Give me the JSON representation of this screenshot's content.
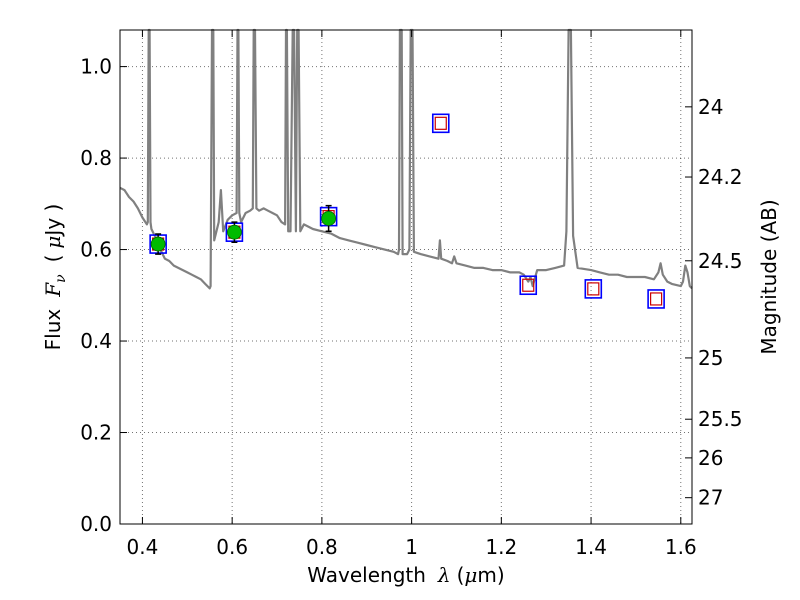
{
  "chart_data": {
    "type": "scatter",
    "title": "",
    "xlabel": {
      "prefix": "Wavelength",
      "symbol": "λ",
      "unit_open": "(",
      "unit_mu": "μ",
      "unit_rest": "m)"
    },
    "ylabel": {
      "prefix": "Flux",
      "symbol": "F",
      "symbol_sub": "ν",
      "unit_open": "(",
      "unit_mu": "μ",
      "unit_rest": "Jy )"
    },
    "y2label": "Magnitude (AB)",
    "xlim": [
      0.35,
      1.625
    ],
    "ylim": [
      0.0,
      1.08
    ],
    "grid": true,
    "x_ticks": [
      {
        "value": 0.4,
        "label": "0.4"
      },
      {
        "value": 0.6,
        "label": "0.6"
      },
      {
        "value": 0.8,
        "label": "0.8"
      },
      {
        "value": 1.0,
        "label": "1"
      },
      {
        "value": 1.2,
        "label": "1.2"
      },
      {
        "value": 1.4,
        "label": "1.4"
      },
      {
        "value": 1.6,
        "label": "1.6"
      }
    ],
    "y_ticks": [
      {
        "value": 0.0,
        "label": "0.0"
      },
      {
        "value": 0.2,
        "label": "0.2"
      },
      {
        "value": 0.4,
        "label": "0.4"
      },
      {
        "value": 0.6,
        "label": "0.6"
      },
      {
        "value": 0.8,
        "label": "0.8"
      },
      {
        "value": 1.0,
        "label": "1.0"
      }
    ],
    "y2_ticks": [
      {
        "mag": 24.0,
        "label": "24"
      },
      {
        "mag": 24.2,
        "label": "24.2"
      },
      {
        "mag": 24.5,
        "label": "24.5"
      },
      {
        "mag": 25.0,
        "label": "25"
      },
      {
        "mag": 25.5,
        "label": "25.5"
      },
      {
        "mag": 26.0,
        "label": "26"
      },
      {
        "mag": 27.0,
        "label": "27"
      }
    ],
    "series": [
      {
        "kind": "spectrum",
        "color": "#808080",
        "points": [
          [
            0.35,
            0.735
          ],
          [
            0.36,
            0.73
          ],
          [
            0.37,
            0.715
          ],
          [
            0.38,
            0.705
          ],
          [
            0.39,
            0.69
          ],
          [
            0.4,
            0.67
          ],
          [
            0.41,
            0.655
          ],
          [
            0.412,
            0.66
          ],
          [
            0.414,
            1.08
          ],
          [
            0.416,
            1.08
          ],
          [
            0.418,
            0.66
          ],
          [
            0.42,
            0.645
          ],
          [
            0.43,
            0.625
          ],
          [
            0.44,
            0.6
          ],
          [
            0.45,
            0.58
          ],
          [
            0.46,
            0.575
          ],
          [
            0.47,
            0.565
          ],
          [
            0.48,
            0.56
          ],
          [
            0.49,
            0.555
          ],
          [
            0.5,
            0.55
          ],
          [
            0.51,
            0.545
          ],
          [
            0.52,
            0.54
          ],
          [
            0.53,
            0.535
          ],
          [
            0.54,
            0.525
          ],
          [
            0.55,
            0.515
          ],
          [
            0.552,
            0.52
          ],
          [
            0.555,
            1.08
          ],
          [
            0.558,
            1.08
          ],
          [
            0.56,
            0.62
          ],
          [
            0.57,
            0.66
          ],
          [
            0.575,
            0.73
          ],
          [
            0.58,
            0.64
          ],
          [
            0.59,
            0.665
          ],
          [
            0.6,
            0.675
          ],
          [
            0.61,
            0.68
          ],
          [
            0.612,
            1.08
          ],
          [
            0.614,
            1.08
          ],
          [
            0.616,
            0.68
          ],
          [
            0.62,
            0.66
          ],
          [
            0.63,
            0.68
          ],
          [
            0.64,
            0.685
          ],
          [
            0.646,
            0.69
          ],
          [
            0.648,
            1.08
          ],
          [
            0.651,
            1.08
          ],
          [
            0.654,
            0.69
          ],
          [
            0.66,
            0.685
          ],
          [
            0.67,
            0.69
          ],
          [
            0.68,
            0.685
          ],
          [
            0.69,
            0.68
          ],
          [
            0.7,
            0.675
          ],
          [
            0.71,
            0.66
          ],
          [
            0.718,
            0.655
          ],
          [
            0.72,
            1.08
          ],
          [
            0.722,
            1.08
          ],
          [
            0.725,
            0.64
          ],
          [
            0.73,
            0.64
          ],
          [
            0.735,
            1.08
          ],
          [
            0.738,
            1.08
          ],
          [
            0.742,
            0.64
          ],
          [
            0.745,
            1.08
          ],
          [
            0.748,
            1.08
          ],
          [
            0.752,
            0.64
          ],
          [
            0.76,
            0.655
          ],
          [
            0.78,
            0.645
          ],
          [
            0.8,
            0.64
          ],
          [
            0.82,
            0.635
          ],
          [
            0.84,
            0.625
          ],
          [
            0.86,
            0.62
          ],
          [
            0.88,
            0.615
          ],
          [
            0.9,
            0.61
          ],
          [
            0.92,
            0.605
          ],
          [
            0.94,
            0.6
          ],
          [
            0.96,
            0.595
          ],
          [
            0.97,
            0.59
          ],
          [
            0.972,
            0.6
          ],
          [
            0.974,
            1.08
          ],
          [
            0.978,
            1.08
          ],
          [
            0.98,
            0.59
          ],
          [
            0.99,
            0.59
          ],
          [
            0.995,
            0.6
          ],
          [
            0.998,
            1.08
          ],
          [
            1.002,
            1.08
          ],
          [
            1.005,
            0.595
          ],
          [
            1.02,
            0.59
          ],
          [
            1.04,
            0.585
          ],
          [
            1.06,
            0.58
          ],
          [
            1.063,
            0.62
          ],
          [
            1.066,
            0.58
          ],
          [
            1.08,
            0.575
          ],
          [
            1.09,
            0.57
          ],
          [
            1.095,
            0.585
          ],
          [
            1.1,
            0.57
          ],
          [
            1.12,
            0.565
          ],
          [
            1.14,
            0.56
          ],
          [
            1.16,
            0.56
          ],
          [
            1.18,
            0.555
          ],
          [
            1.2,
            0.555
          ],
          [
            1.22,
            0.55
          ],
          [
            1.24,
            0.55
          ],
          [
            1.25,
            0.545
          ],
          [
            1.26,
            0.53
          ],
          [
            1.265,
            0.54
          ],
          [
            1.27,
            0.52
          ],
          [
            1.28,
            0.555
          ],
          [
            1.3,
            0.555
          ],
          [
            1.32,
            0.56
          ],
          [
            1.34,
            0.565
          ],
          [
            1.345,
            0.64
          ],
          [
            1.35,
            1.08
          ],
          [
            1.355,
            1.08
          ],
          [
            1.36,
            0.63
          ],
          [
            1.37,
            0.56
          ],
          [
            1.4,
            0.555
          ],
          [
            1.42,
            0.55
          ],
          [
            1.44,
            0.545
          ],
          [
            1.46,
            0.545
          ],
          [
            1.48,
            0.54
          ],
          [
            1.5,
            0.54
          ],
          [
            1.52,
            0.54
          ],
          [
            1.54,
            0.535
          ],
          [
            1.55,
            0.55
          ],
          [
            1.555,
            0.57
          ],
          [
            1.56,
            0.545
          ],
          [
            1.57,
            0.53
          ],
          [
            1.58,
            0.525
          ],
          [
            1.6,
            0.52
          ],
          [
            1.605,
            0.53
          ],
          [
            1.61,
            0.565
          ],
          [
            1.615,
            0.55
          ],
          [
            1.62,
            0.52
          ],
          [
            1.625,
            0.515
          ]
        ]
      },
      {
        "kind": "observed",
        "name": "",
        "color": "#00bb00",
        "edge": "#006600",
        "points": [
          {
            "x": 0.435,
            "y": 0.612,
            "err": 0.022
          },
          {
            "x": 0.605,
            "y": 0.638,
            "err": 0.022
          },
          {
            "x": 0.815,
            "y": 0.668,
            "err": 0.028
          }
        ]
      },
      {
        "kind": "model",
        "name": "",
        "box_color": "#0000ff",
        "inner_color": "#cc0000",
        "points": [
          {
            "x": 0.435,
            "y": 0.612
          },
          {
            "x": 0.605,
            "y": 0.638
          },
          {
            "x": 0.815,
            "y": 0.672
          },
          {
            "x": 1.065,
            "y": 0.876
          },
          {
            "x": 1.26,
            "y": 0.522
          },
          {
            "x": 1.405,
            "y": 0.514
          },
          {
            "x": 1.545,
            "y": 0.492
          }
        ]
      }
    ]
  }
}
